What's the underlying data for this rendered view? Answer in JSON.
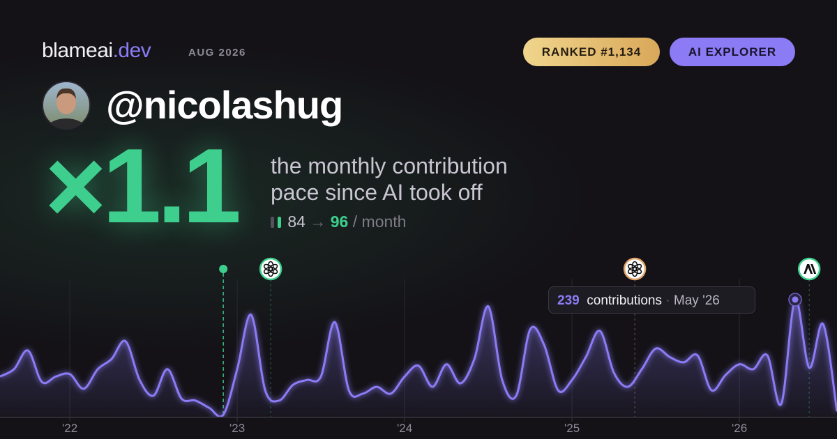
{
  "header": {
    "brand": "blameai",
    "brand_suffix": ".dev",
    "date": "AUG 2026",
    "badges": [
      "RANKED #1,134",
      "AI EXPLORER"
    ]
  },
  "profile": {
    "handle": "@nicolashug"
  },
  "headline": {
    "multiplier": "×1.1",
    "description": [
      "the monthly contribution",
      "pace since AI took off"
    ],
    "before": 84,
    "arrow": "→",
    "after": 96,
    "unit": "/ month"
  },
  "chart_data": {
    "type": "area",
    "color": "#8b7cf6",
    "grid": true,
    "x": [
      2021.583,
      2021.667,
      2021.75,
      2021.833,
      2021.917,
      2022,
      2022.083,
      2022.167,
      2022.25,
      2022.333,
      2022.417,
      2022.5,
      2022.583,
      2022.667,
      2022.75,
      2022.833,
      2022.917,
      2023,
      2023.083,
      2023.167,
      2023.25,
      2023.333,
      2023.417,
      2023.5,
      2023.583,
      2023.667,
      2023.75,
      2023.833,
      2023.917,
      2024,
      2024.083,
      2024.167,
      2024.25,
      2024.333,
      2024.417,
      2024.5,
      2024.583,
      2024.667,
      2024.75,
      2024.833,
      2024.917,
      2025,
      2025.083,
      2025.167,
      2025.25,
      2025.333,
      2025.417,
      2025.5,
      2025.583,
      2025.667,
      2025.75,
      2025.833,
      2025.917,
      2026,
      2026.083,
      2026.167,
      2026.25,
      2026.333,
      2026.417,
      2026.5,
      2026.583
    ],
    "values": [
      82,
      97,
      135,
      71,
      82,
      87,
      57,
      97,
      118,
      154,
      75,
      43,
      97,
      37,
      33,
      18,
      4,
      97,
      208,
      54,
      33,
      65,
      75,
      82,
      193,
      54,
      47,
      61,
      47,
      82,
      104,
      61,
      107,
      68,
      118,
      225,
      75,
      43,
      178,
      147,
      54,
      75,
      122,
      175,
      90,
      61,
      97,
      139,
      122,
      111,
      125,
      54,
      85,
      107,
      97,
      125,
      26,
      239,
      100,
      189,
      11
    ],
    "xlim": [
      2021.583,
      2026.583
    ],
    "ylim": [
      0,
      300
    ],
    "xticks": [
      {
        "value": 2022,
        "label": "'22"
      },
      {
        "value": 2023,
        "label": "'23"
      },
      {
        "value": 2024,
        "label": "'24"
      },
      {
        "value": 2025,
        "label": "'25"
      },
      {
        "value": 2026,
        "label": "'26"
      }
    ],
    "events": [
      {
        "x": 2022.917,
        "kind": "dot",
        "color": "#3ecf8e"
      },
      {
        "x": 2023.2,
        "kind": "openai",
        "color": "#3ecf8e"
      },
      {
        "x": 2025.375,
        "kind": "openai",
        "color": "#e0a36a"
      },
      {
        "x": 2026.417,
        "kind": "anthropic",
        "color": "#3ecf8e"
      }
    ],
    "tooltip": {
      "value": 239,
      "label": "contributions",
      "separator": "·",
      "date": "May '26"
    }
  }
}
